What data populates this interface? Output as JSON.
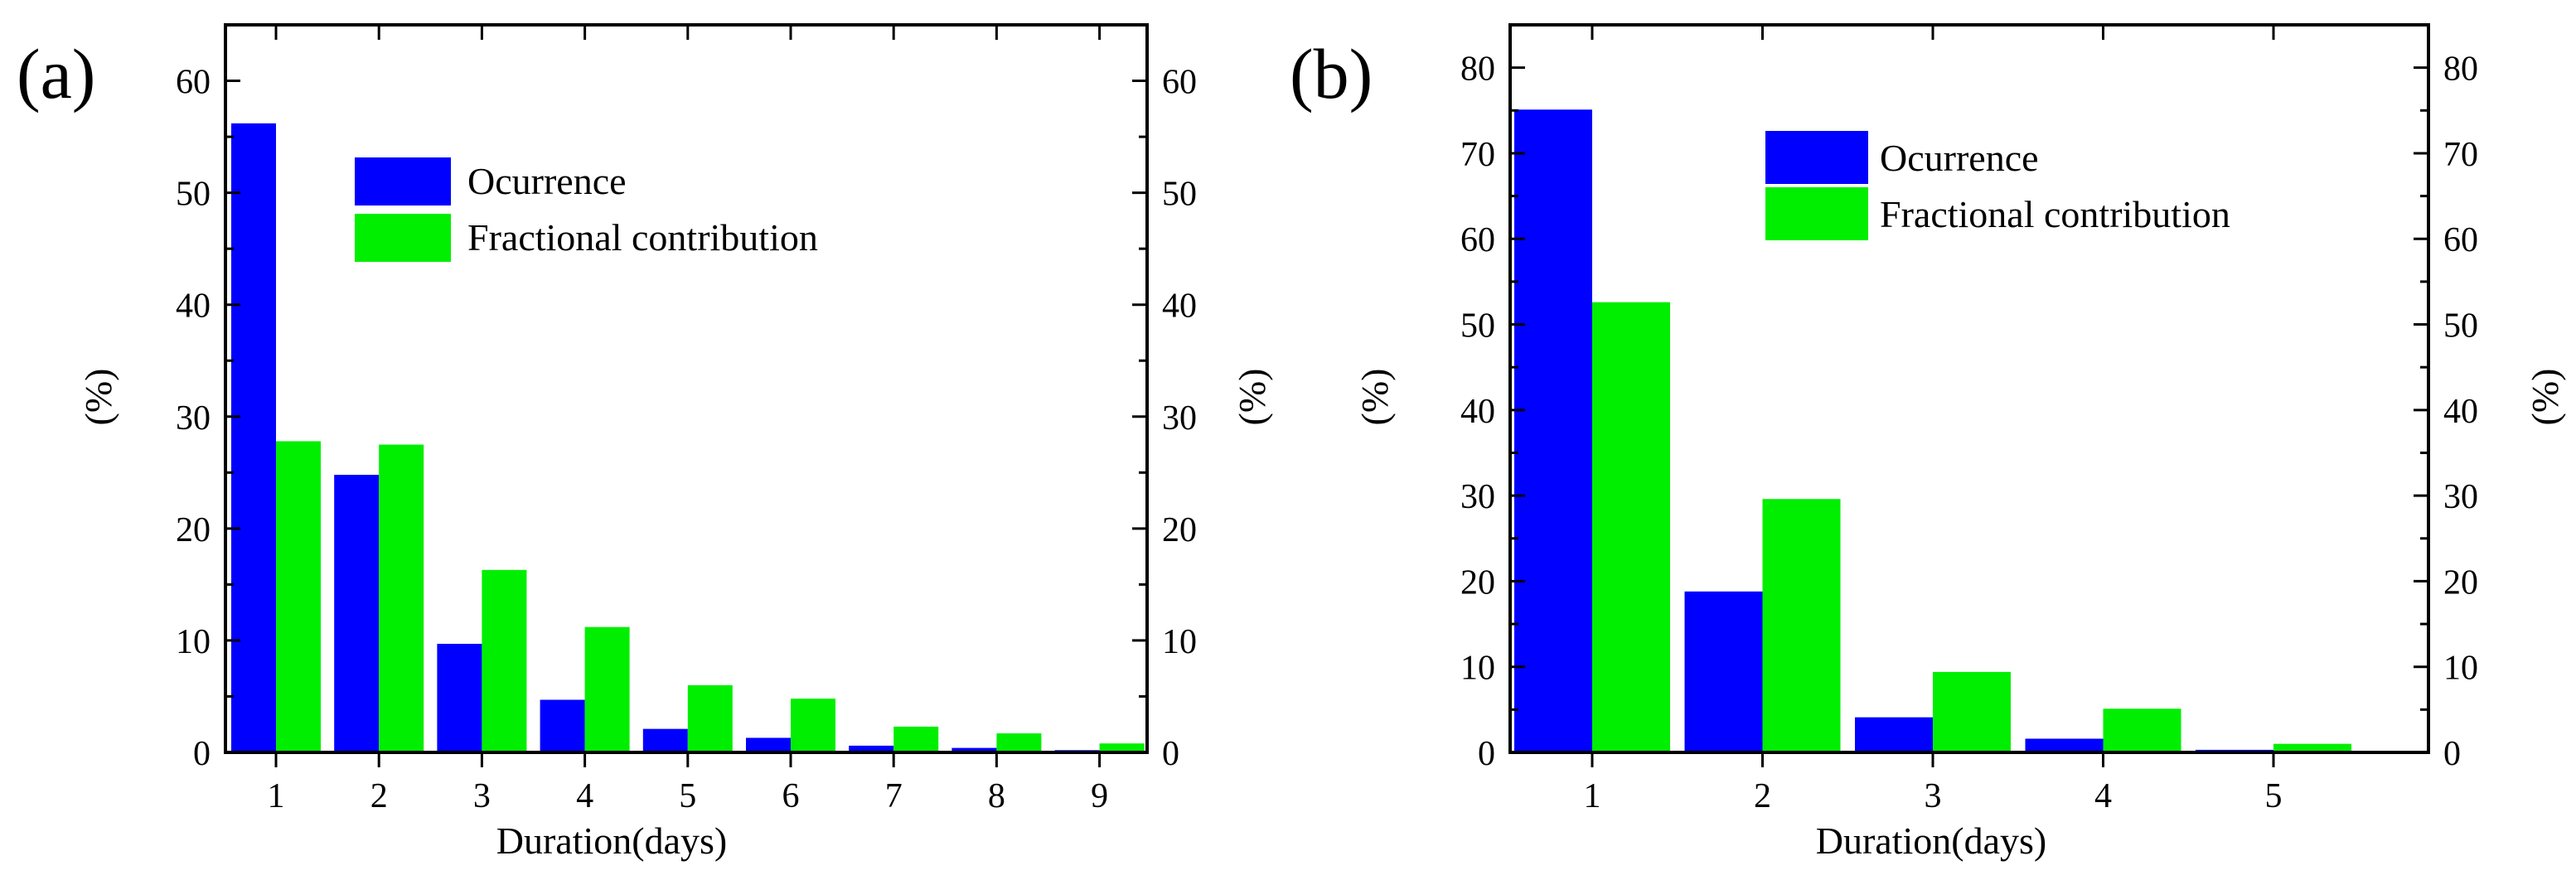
{
  "chart_data": [
    {
      "type": "bar",
      "panel_label": "(a)",
      "categories": [
        "1",
        "2",
        "3",
        "4",
        "5",
        "6",
        "7",
        "8",
        "9"
      ],
      "series": [
        {
          "name": "Ocurrence",
          "color": "#0000ff",
          "values": [
            56.2,
            24.8,
            9.7,
            4.7,
            2.1,
            1.3,
            0.6,
            0.4,
            0.2
          ]
        },
        {
          "name": "Fractional contribution",
          "color": "#00ee00",
          "values": [
            27.8,
            27.5,
            16.3,
            11.2,
            6.0,
            4.8,
            2.3,
            1.7,
            0.8
          ]
        }
      ],
      "xlabel": "Duration(days)",
      "ylabel": "(%)",
      "ylabel_right": "(%)",
      "ylim": [
        0,
        65
      ],
      "yticks": [
        0,
        10,
        20,
        30,
        40,
        50,
        60
      ],
      "grid": false,
      "legend_position": "upper-center"
    },
    {
      "type": "bar",
      "panel_label": "(b)",
      "categories": [
        "1",
        "2",
        "3",
        "4",
        "5"
      ],
      "series": [
        {
          "name": "Ocurrence",
          "color": "#0000ff",
          "values": [
            75.1,
            18.8,
            4.1,
            1.6,
            0.3
          ]
        },
        {
          "name": "Fractional contribution",
          "color": "#00ee00",
          "values": [
            52.6,
            29.6,
            9.4,
            5.1,
            1.0
          ]
        }
      ],
      "xlabel": "Duration(days)",
      "ylabel": "(%)",
      "ylabel_right": "(%)",
      "ylim": [
        0,
        85
      ],
      "yticks": [
        0,
        10,
        20,
        30,
        40,
        50,
        60,
        70,
        80
      ],
      "grid": false,
      "legend_position": "upper-center"
    }
  ]
}
